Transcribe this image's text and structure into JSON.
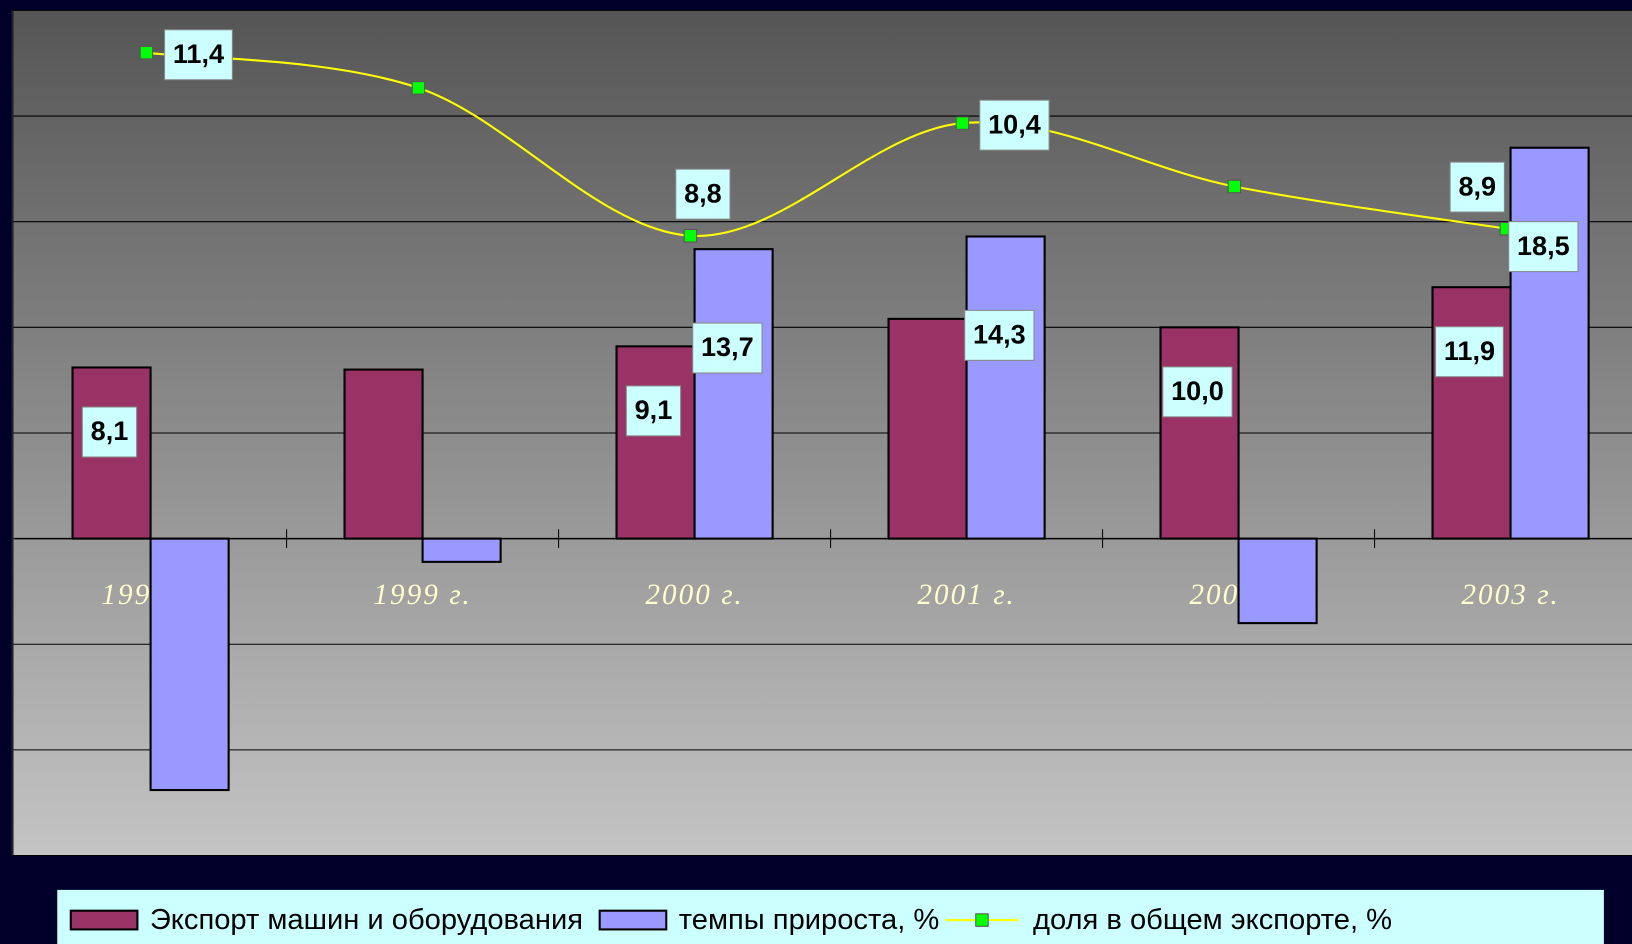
{
  "chart_data": {
    "type": "bar",
    "categories": [
      "1998 г.",
      "1999 г.",
      "2000 г.",
      "2001 г.",
      "2002 г.",
      "2003 г."
    ],
    "ylim": [
      -15,
      25
    ],
    "yticks": [
      -15,
      -10,
      -5,
      0,
      5,
      10,
      15,
      20,
      25
    ],
    "grid": true,
    "y2lim": [
      0,
      12
    ],
    "series": [
      {
        "name": "Экспорт машин и оборудования",
        "type": "bar",
        "color": "#993366",
        "values": [
          8.1,
          8.0,
          9.1,
          10.4,
          10.0,
          11.9
        ],
        "value_labels": [
          "8,1",
          null,
          "9,1",
          null,
          "10,0",
          "11,9"
        ]
      },
      {
        "name": "темпы прироста, %",
        "type": "bar",
        "color": "#9999ff",
        "values": [
          -11.9,
          -1.1,
          13.7,
          14.3,
          -4.0,
          18.5
        ],
        "value_labels": [
          null,
          null,
          "13,7",
          "14,3",
          null,
          "18,5"
        ]
      },
      {
        "name": "доля в общем экспорте, %",
        "type": "line",
        "axis": "y2",
        "color": "#ffff00",
        "marker_color": "#00ff00",
        "values": [
          11.4,
          10.9,
          8.8,
          10.4,
          9.5,
          8.9
        ],
        "value_labels": [
          "11,4",
          null,
          "8,8",
          "10,4",
          null,
          "8,9"
        ]
      }
    ],
    "legend": "bottom"
  }
}
